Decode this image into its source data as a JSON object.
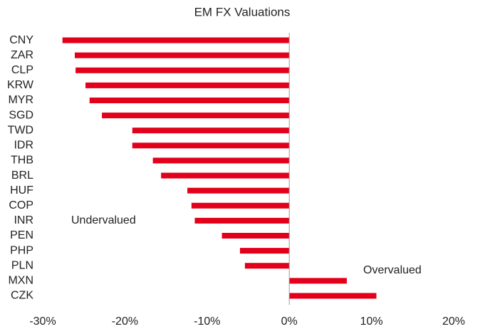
{
  "chart_data": {
    "type": "bar",
    "orientation": "horizontal",
    "title": "EM FX Valuations",
    "categories": [
      "CNY",
      "ZAR",
      "CLP",
      "KRW",
      "MYR",
      "SGD",
      "TWD",
      "IDR",
      "THB",
      "BRL",
      "HUF",
      "COP",
      "INR",
      "PEN",
      "PHP",
      "PLN",
      "MXN",
      "CZK"
    ],
    "values": [
      -27.6,
      -26.1,
      -26.0,
      -24.8,
      -24.3,
      -22.8,
      -19.1,
      -19.1,
      -16.6,
      -15.6,
      -12.4,
      -11.9,
      -11.5,
      -8.2,
      -6.0,
      -5.4,
      7.0,
      10.6
    ],
    "color": "#e2001a",
    "xlim": [
      -30,
      20
    ],
    "xticks": [
      {
        "value": -30,
        "label": "-30%"
      },
      {
        "value": -20,
        "label": "-20%"
      },
      {
        "value": -10,
        "label": "-10%"
      },
      {
        "value": 0,
        "label": "0%"
      },
      {
        "value": 10,
        "label": "10%"
      },
      {
        "value": 20,
        "label": "20%"
      }
    ],
    "annotations": [
      "Undervalued",
      "Overvalued"
    ]
  }
}
